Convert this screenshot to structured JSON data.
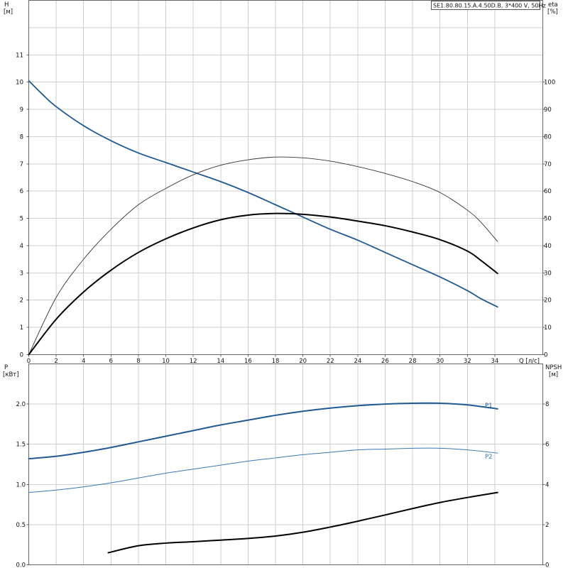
{
  "header": {
    "model_label": "SE1.80.80.15.A.4.50D.B, 3*400 V, 50Hz"
  },
  "colors": {
    "blue": "#1f5a95",
    "black": "#000000",
    "thin": "#333333",
    "light_blue": "#3a78b6",
    "grid": "#cfcfcf"
  },
  "chart_data": [
    {
      "type": "line",
      "panel": "top",
      "xlabel": "Q [л/с]",
      "ylabel": "H",
      "ylabel_unit": "[м]",
      "y2label": "eta",
      "y2label_unit": "[%]",
      "xlim": [
        0,
        37.5
      ],
      "ylim": [
        0,
        13
      ],
      "y2lim": [
        0,
        130
      ],
      "x_ticks": [
        0,
        2,
        4,
        6,
        8,
        10,
        12,
        14,
        16,
        18,
        20,
        22,
        24,
        26,
        28,
        30,
        32,
        34
      ],
      "y_ticks": [
        0,
        1,
        2,
        3,
        4,
        5,
        6,
        7,
        8,
        9,
        10,
        11
      ],
      "y2_ticks": [
        0,
        10,
        20,
        30,
        40,
        50,
        60,
        70,
        80,
        90,
        100
      ],
      "series": [
        {
          "id": "H",
          "axis": "left",
          "color": "#1f5a95",
          "width": 1.8,
          "x": [
            0,
            1,
            2,
            4,
            6,
            8,
            10,
            12,
            14,
            16,
            18,
            20,
            22,
            24,
            26,
            28,
            30,
            32,
            33,
            34.2
          ],
          "y": [
            10.05,
            9.55,
            9.1,
            8.4,
            7.85,
            7.4,
            7.05,
            6.7,
            6.35,
            5.95,
            5.5,
            5.05,
            4.6,
            4.2,
            3.75,
            3.3,
            2.85,
            2.35,
            2.05,
            1.75
          ]
        },
        {
          "id": "eta_hydraulic",
          "axis": "right",
          "color": "#333333",
          "width": 0.9,
          "x": [
            0,
            2,
            4,
            6,
            8,
            10,
            12,
            14,
            16,
            18,
            20,
            22,
            24,
            26,
            28,
            30,
            32,
            33,
            34.2
          ],
          "y": [
            0,
            21,
            35,
            46,
            55,
            61,
            66,
            69.5,
            71.5,
            72.5,
            72.2,
            71,
            69,
            66.5,
            63.5,
            59.5,
            53,
            48.5,
            41.5
          ]
        },
        {
          "id": "eta_total",
          "axis": "right",
          "color": "#000000",
          "width": 2,
          "x": [
            0,
            2,
            4,
            6,
            8,
            10,
            12,
            14,
            16,
            18,
            20,
            22,
            24,
            26,
            28,
            30,
            32,
            33,
            34.2
          ],
          "y": [
            0,
            13,
            23,
            31,
            37.5,
            42.5,
            46.5,
            49.5,
            51.2,
            51.8,
            51.5,
            50.5,
            49,
            47.3,
            45,
            42.2,
            38,
            34.5,
            29.8
          ]
        }
      ]
    },
    {
      "type": "line",
      "panel": "bottom",
      "ylabel": "P",
      "ylabel_unit": "[кВт]",
      "y2label": "NPSH",
      "y2label_unit": "[м]",
      "xlim": [
        0,
        37.5
      ],
      "ylim": [
        0,
        2.5
      ],
      "y2lim": [
        0,
        10
      ],
      "y_ticks": [
        0.0,
        0.5,
        1.0,
        1.5,
        2.0
      ],
      "y_tick_labels": [
        "0.0",
        "0.5",
        "1.0",
        "1.5",
        "2.0"
      ],
      "y2_ticks": [
        0,
        2,
        4,
        6,
        8
      ],
      "series": [
        {
          "id": "P1",
          "name": "P1",
          "axis": "left",
          "color": "#1f5a95",
          "width": 2,
          "x": [
            0,
            2,
            4,
            6,
            8,
            10,
            12,
            14,
            16,
            18,
            20,
            22,
            24,
            26,
            28,
            30,
            32,
            34.2
          ],
          "y": [
            1.32,
            1.35,
            1.4,
            1.46,
            1.53,
            1.6,
            1.67,
            1.74,
            1.8,
            1.86,
            1.91,
            1.95,
            1.98,
            2.0,
            2.01,
            2.01,
            1.99,
            1.94
          ]
        },
        {
          "id": "P2",
          "name": "P2",
          "axis": "left",
          "color": "#3a78b6",
          "width": 1,
          "x": [
            0,
            2,
            4,
            6,
            8,
            10,
            12,
            14,
            16,
            18,
            20,
            22,
            24,
            26,
            28,
            30,
            32,
            34.2
          ],
          "y": [
            0.9,
            0.93,
            0.97,
            1.02,
            1.08,
            1.14,
            1.19,
            1.24,
            1.29,
            1.33,
            1.37,
            1.4,
            1.43,
            1.44,
            1.45,
            1.45,
            1.43,
            1.39
          ]
        },
        {
          "id": "NPSH",
          "axis": "right",
          "color": "#000000",
          "width": 2,
          "x": [
            5.8,
            8,
            10,
            12,
            14,
            16,
            18,
            20,
            22,
            24,
            26,
            28,
            30,
            32,
            34.2
          ],
          "y": [
            0.6,
            0.95,
            1.08,
            1.15,
            1.23,
            1.31,
            1.43,
            1.62,
            1.88,
            2.17,
            2.48,
            2.8,
            3.1,
            3.35,
            3.6
          ]
        }
      ]
    }
  ]
}
